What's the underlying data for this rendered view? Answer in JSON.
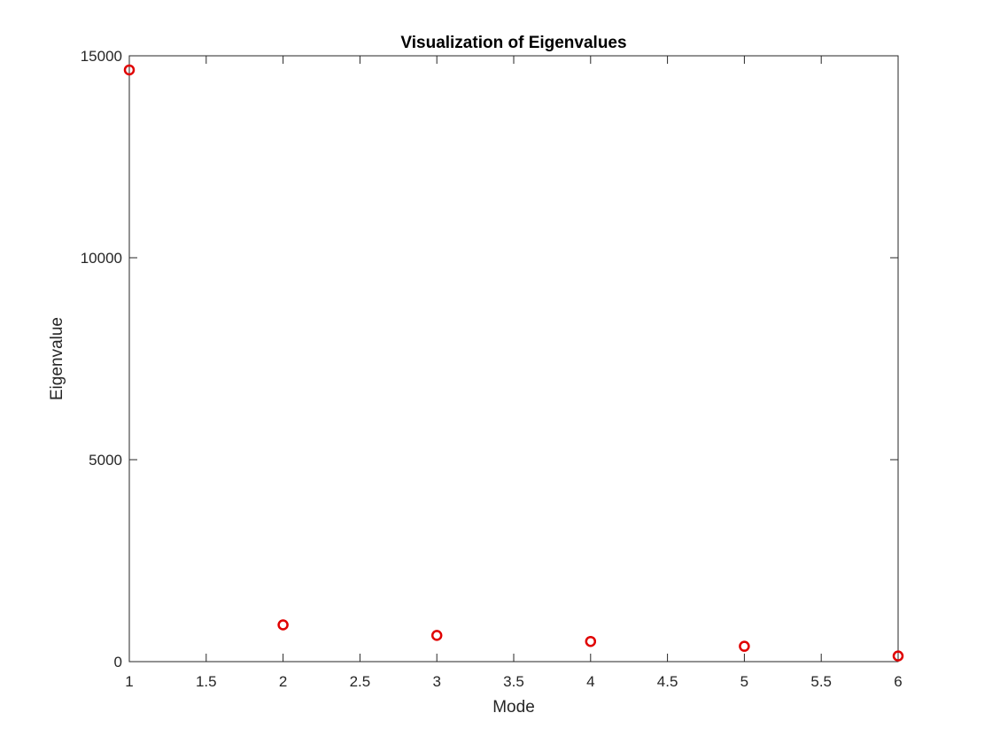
{
  "chart_data": {
    "type": "scatter",
    "title": "Visualization of Eigenvalues",
    "xlabel": "Mode",
    "ylabel": "Eigenvalue",
    "xlim": [
      1,
      6
    ],
    "ylim": [
      0,
      15000
    ],
    "xticks": [
      1,
      1.5,
      2,
      2.5,
      3,
      3.5,
      4,
      4.5,
      5,
      5.5,
      6
    ],
    "yticks": [
      0,
      5000,
      10000,
      15000
    ],
    "grid": false,
    "legend": "none",
    "marker": "circle-open",
    "marker_color": "#e00000",
    "x": [
      1,
      2,
      3,
      4,
      5,
      6
    ],
    "y": [
      14650,
      910,
      650,
      500,
      380,
      140
    ]
  }
}
